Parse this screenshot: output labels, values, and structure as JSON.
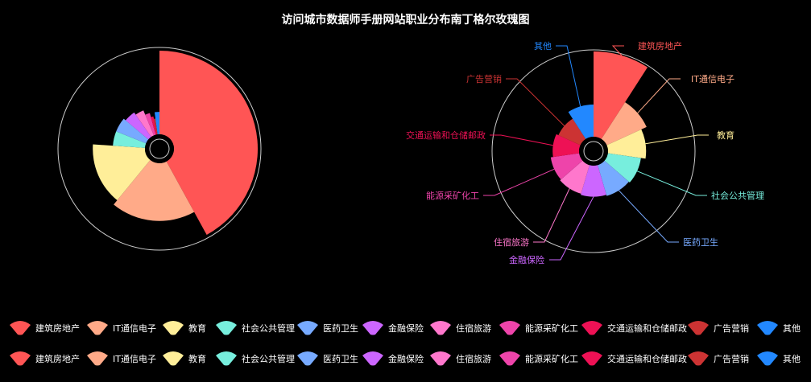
{
  "title": "访问城市数据师手册网站职业分布南丁格尔玫瑰图",
  "chart_data": [
    {
      "type": "pie",
      "subtype": "nightingale-rose-area",
      "categories": [
        "建筑房地产",
        "IT通信电子",
        "教育",
        "社会公共管理",
        "医药卫生",
        "金融保险",
        "住宿旅游",
        "能源采矿化工",
        "交通运输和仓储邮政",
        "广告营销",
        "其他"
      ],
      "values": [
        100,
        45,
        36,
        12,
        12,
        10,
        8,
        5,
        3,
        2,
        5
      ],
      "labels_visible": false
    },
    {
      "type": "pie",
      "subtype": "nightingale-rose-radius",
      "categories": [
        "建筑房地产",
        "IT通信电子",
        "教育",
        "社会公共管理",
        "医药卫生",
        "金融保险",
        "住宿旅游",
        "能源采矿化工",
        "交通运输和仓储邮政",
        "广告营销",
        "其他"
      ],
      "values": [
        100,
        70,
        60,
        52,
        50,
        48,
        46,
        44,
        40,
        36,
        50
      ],
      "labels_visible": true
    }
  ],
  "colors": [
    "#ff5555",
    "#ffaa88",
    "#ffee99",
    "#77eedd",
    "#77aaff",
    "#cc66ff",
    "#ff77cc",
    "#ee44aa",
    "#ee1155",
    "#cc3333",
    "#2288ff"
  ],
  "legend": {
    "rows": 2,
    "position": "bottom",
    "items": [
      "建筑房地产",
      "IT通信电子",
      "教育",
      "社会公共管理",
      "医药卫生",
      "金融保险",
      "住宿旅游",
      "能源采矿化工",
      "交通运输和仓储邮政",
      "广告营销",
      "其他"
    ]
  }
}
